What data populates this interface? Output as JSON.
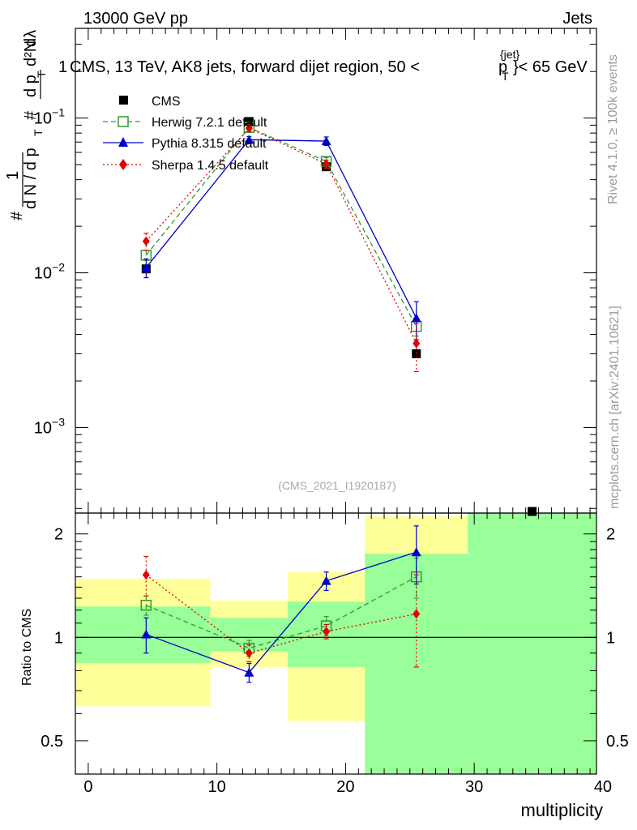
{
  "header": {
    "left": "13000 GeV pp",
    "right": "Jets",
    "plot_title_prefix": "CMS, 13 TeV, AK8 jets, forward dijet region, 50 <",
    "plot_title_p": "p",
    "plot_title_sup": "{jet}",
    "plot_title_sub": "T",
    "plot_title_suffix": "}< 65 GeV",
    "leading_one": "1"
  },
  "side_labels": {
    "rivet": "Rivet 4.1.0, ≥ 100k events",
    "mcplots": "mcplots.cern.ch [arXiv:2401.10621]"
  },
  "watermark": "(CMS_2021_I1920187)",
  "main_ylabel": {
    "hash1": "#",
    "one": "1",
    "dN": "d N / d p",
    "T": "T",
    "hash2": "#",
    "dpT": "d p",
    "T2": "T",
    "d2N": "d²N",
    "dlambda": "dλ"
  },
  "ratio_ylabel": "Ratio to CMS",
  "xlabel": "multiplicity",
  "main_ticks": [
    {
      "base": "10",
      "exp": "−1",
      "value": 0.1
    },
    {
      "base": "10",
      "exp": "−2",
      "value": 0.01
    },
    {
      "base": "10",
      "exp": "−3",
      "value": 0.001
    }
  ],
  "ratio_ticks": [
    {
      "label": "2",
      "value": 2
    },
    {
      "label": "1",
      "value": 1
    },
    {
      "label": "0.5",
      "value": 0.5
    }
  ],
  "x_ticks": [
    {
      "label": "0",
      "value": 0
    },
    {
      "label": "10",
      "value": 10
    },
    {
      "label": "20",
      "value": 20
    },
    {
      "label": "30",
      "value": 30
    },
    {
      "label": "40",
      "value": 40
    }
  ],
  "legend": [
    {
      "label": "CMS",
      "color": "#000000"
    },
    {
      "label": "Herwig 7.2.1 default",
      "color": "#339933"
    },
    {
      "label": "Pythia 8.315 default",
      "color": "#0000cc"
    },
    {
      "label": "Sherpa 1.4.5 default",
      "color": "#e60000"
    }
  ],
  "chart_data": {
    "type": "line",
    "title": "CMS, 13 TeV, AK8 jets, forward dijet region, 50 < p_T^{jet} < 65 GeV",
    "xlabel": "multiplicity",
    "xlim": [
      -1,
      39.5
    ],
    "main": {
      "yscale": "log",
      "ylim": [
        0.00028,
        0.38
      ],
      "bin_edges": [
        -1,
        9.5,
        15.5,
        21.5,
        29.5,
        39.5
      ],
      "cms": {
        "x": [
          4.5,
          12.5,
          18.5,
          25.5,
          34.5
        ],
        "y": [
          0.0106,
          0.095,
          0.0485,
          0.003,
          0.00028
        ]
      },
      "series": [
        {
          "name": "Herwig 7.2.1 default",
          "color": "#339933",
          "dash": "6,4",
          "marker": "open-square",
          "x": [
            4.5,
            12.5,
            18.5,
            25.5
          ],
          "y": [
            0.013,
            0.087,
            0.0525,
            0.0045
          ],
          "err": [
            0.001,
            0.003,
            0.003,
            0.0006
          ]
        },
        {
          "name": "Pythia 8.315 default",
          "color": "#0000cc",
          "dash": "",
          "marker": "triangle",
          "x": [
            4.5,
            12.5,
            18.5,
            25.5
          ],
          "y": [
            0.0108,
            0.0725,
            0.071,
            0.0051
          ],
          "err": [
            0.0015,
            0.0035,
            0.0045,
            0.0014
          ]
        },
        {
          "name": "Sherpa 1.4.5 default",
          "color": "#e60000",
          "dash": "2,3",
          "marker": "diamond",
          "x": [
            4.5,
            12.5,
            18.5,
            25.5
          ],
          "y": [
            0.016,
            0.086,
            0.0505,
            0.0035
          ],
          "err": [
            0.002,
            0.004,
            0.003,
            0.0012
          ]
        }
      ]
    },
    "ratio": {
      "yscale": "log",
      "ylim": [
        0.4,
        2.3
      ],
      "reference": 1,
      "bands": [
        {
          "x0": -1,
          "x1": 9.5,
          "yellow": [
            0.63,
            1.48
          ],
          "green": [
            0.84,
            1.23
          ]
        },
        {
          "x0": 9.5,
          "x1": 15.5,
          "yellow": [
            0.82,
            1.28
          ],
          "green": [
            0.91,
            1.14
          ]
        },
        {
          "x0": 15.5,
          "x1": 21.5,
          "yellow": [
            0.57,
            1.55
          ],
          "green": [
            0.82,
            1.27
          ]
        },
        {
          "x0": 21.5,
          "x1": 29.5,
          "yellow": [
            0.4,
            2.25
          ],
          "green": [
            0.4,
            1.75
          ]
        },
        {
          "x0": 29.5,
          "x1": 39.5,
          "yellow": [
            0.4,
            2.3
          ],
          "green": [
            0.4,
            2.3
          ]
        }
      ],
      "series": [
        {
          "name": "Herwig 7.2.1 default",
          "x": [
            4.5,
            12.5,
            18.5,
            25.5
          ],
          "y": [
            1.24,
            0.93,
            1.08,
            1.5
          ],
          "err": [
            0.08,
            0.05,
            0.07,
            0.2
          ]
        },
        {
          "name": "Pythia 8.315 default",
          "x": [
            4.5,
            12.5,
            18.5,
            25.5
          ],
          "y": [
            1.02,
            0.79,
            1.46,
            1.77
          ],
          "err": [
            0.12,
            0.05,
            0.09,
            0.34
          ]
        },
        {
          "name": "Sherpa 1.4.5 default",
          "x": [
            4.5,
            12.5,
            18.5,
            25.5
          ],
          "y": [
            1.52,
            0.9,
            1.04,
            1.17
          ],
          "err": [
            0.2,
            0.05,
            0.05,
            0.35
          ]
        }
      ]
    }
  }
}
